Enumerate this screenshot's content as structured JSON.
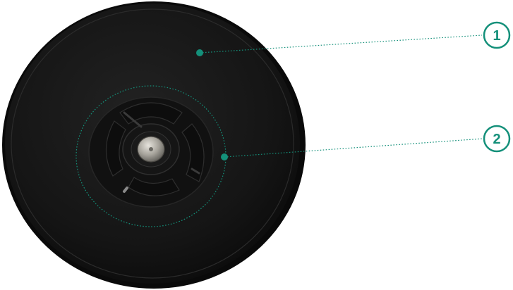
{
  "colors": {
    "accent": "#14907a",
    "disc": "#141414",
    "disc_edge": "#2a2a2a",
    "hub": "#1d1d1d",
    "metal": "#9a978f",
    "background": "#ffffff"
  },
  "callouts": [
    {
      "label": "1"
    },
    {
      "label": "2"
    }
  ]
}
